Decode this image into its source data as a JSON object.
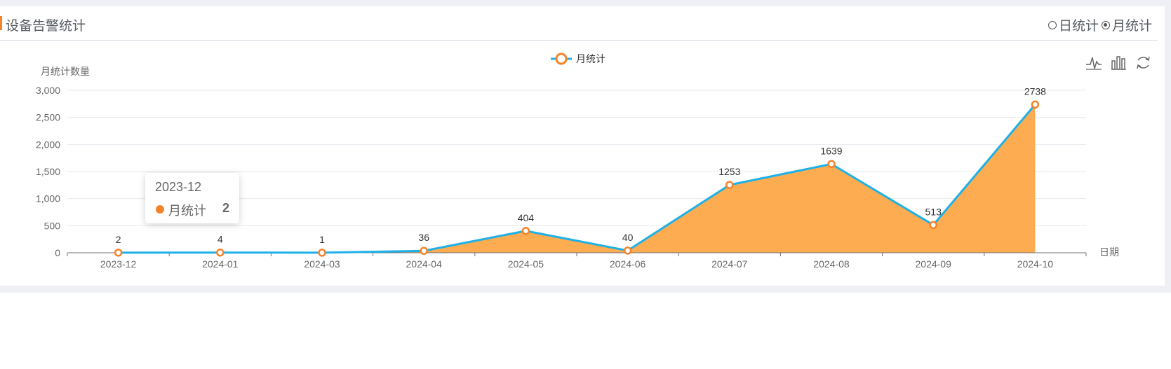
{
  "header": {
    "title": "设备告警统计",
    "radio_options": [
      {
        "label": "日统计",
        "checked": false
      },
      {
        "label": "月统计",
        "checked": true
      }
    ]
  },
  "toolbox": {
    "icons": [
      "line-chart-icon",
      "bar-chart-icon",
      "refresh-icon"
    ]
  },
  "tooltip": {
    "title": "2023-12",
    "series_name": "月统计",
    "value": "2"
  },
  "colors": {
    "line": "#1eb1e6",
    "area": "#fea848",
    "marker": "#f5832a",
    "accent": "#f5832a"
  },
  "chart_data": {
    "type": "area",
    "categories": [
      "2023-12",
      "2024-01",
      "2024-03",
      "2024-04",
      "2024-05",
      "2024-06",
      "2024-07",
      "2024-08",
      "2024-09",
      "2024-10"
    ],
    "series": [
      {
        "name": "月统计",
        "values": [
          2,
          4,
          1,
          36,
          404,
          40,
          1253,
          1639,
          513,
          2738
        ]
      }
    ],
    "ylabel": "月统计数量",
    "xlabel": "日期",
    "ylim": [
      0,
      3000
    ],
    "yticks": [
      0,
      500,
      1000,
      1500,
      2000,
      2500,
      3000
    ],
    "ytick_labels": [
      "0",
      "500",
      "1,000",
      "1,500",
      "2,000",
      "2,500",
      "3,000"
    ],
    "grid": true,
    "legend": "top-center",
    "data_labels": true
  }
}
